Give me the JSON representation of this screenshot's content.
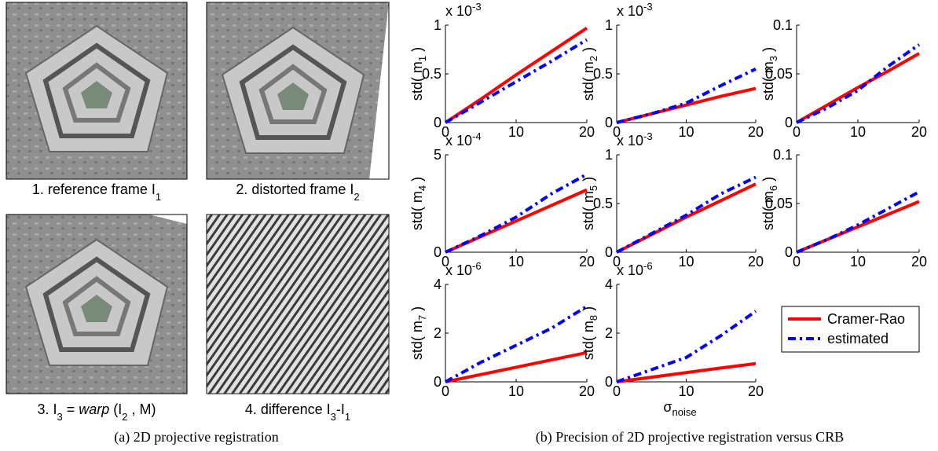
{
  "figure": {
    "panels": [
      {
        "caption": [
          "1. reference frame I",
          "1"
        ]
      },
      {
        "caption": [
          "2. distorted frame I",
          "2"
        ]
      },
      {
        "caption": [
          "3. I",
          "3",
          " = ",
          "warp",
          " (I",
          "2",
          " , M)"
        ]
      },
      {
        "caption": [
          "4. difference I",
          "3",
          "-I",
          "1"
        ]
      }
    ],
    "subcaptions": [
      "(a) 2D projective registration",
      "(b) Precision of 2D projective registration versus CRB"
    ]
  },
  "chart_data": [
    {
      "type": "line",
      "x": [
        0,
        5,
        10,
        15,
        20
      ],
      "xlim": [
        0,
        20
      ],
      "xticks": [
        0,
        10,
        20
      ],
      "ylim": [
        0,
        1
      ],
      "yticks": [
        0,
        0.5,
        1
      ],
      "multiplier": "x 10",
      "exponent": "-3",
      "ylabel": [
        "std( m",
        "1",
        " )"
      ],
      "series": [
        {
          "name": "Cramer-Rao",
          "color": "#ff0000",
          "values": [
            0,
            0.24,
            0.49,
            0.73,
            0.97
          ]
        },
        {
          "name": "estimated",
          "color": "#0000ff",
          "values": [
            0,
            0.21,
            0.42,
            0.63,
            0.85
          ]
        }
      ]
    },
    {
      "type": "line",
      "x": [
        0,
        5,
        10,
        15,
        20
      ],
      "xlim": [
        0,
        20
      ],
      "xticks": [
        0,
        10,
        20
      ],
      "ylim": [
        0,
        1
      ],
      "yticks": [
        0,
        0.5,
        1
      ],
      "multiplier": "x 10",
      "exponent": "-3",
      "ylabel": [
        "std( m",
        "2",
        " )"
      ],
      "series": [
        {
          "name": "Cramer-Rao",
          "color": "#ff0000",
          "values": [
            0,
            0.09,
            0.18,
            0.27,
            0.35
          ]
        },
        {
          "name": "estimated",
          "color": "#0000ff",
          "values": [
            0,
            0.09,
            0.2,
            0.38,
            0.55
          ]
        }
      ]
    },
    {
      "type": "line",
      "x": [
        0,
        5,
        10,
        15,
        20
      ],
      "xlim": [
        0,
        20
      ],
      "xticks": [
        0,
        10,
        20
      ],
      "ylim": [
        0,
        0.1
      ],
      "yticks": [
        0,
        0.05,
        0.1
      ],
      "ylabel": [
        "std( m",
        "3",
        " )"
      ],
      "series": [
        {
          "name": "Cramer-Rao",
          "color": "#ff0000",
          "values": [
            0,
            0.018,
            0.036,
            0.053,
            0.071
          ]
        },
        {
          "name": "estimated",
          "color": "#0000ff",
          "values": [
            0,
            0.015,
            0.033,
            0.058,
            0.08
          ]
        }
      ]
    },
    {
      "type": "line",
      "x": [
        0,
        5,
        10,
        15,
        20
      ],
      "xlim": [
        0,
        20
      ],
      "xticks": [
        0,
        10,
        20
      ],
      "ylim": [
        0,
        5
      ],
      "yticks": [
        0,
        5
      ],
      "multiplier": "x 10",
      "exponent": "-4",
      "ylabel": [
        "std( m",
        "4",
        " )"
      ],
      "series": [
        {
          "name": "Cramer-Rao",
          "color": "#ff0000",
          "values": [
            0,
            0.8,
            1.6,
            2.4,
            3.2
          ]
        },
        {
          "name": "estimated",
          "color": "#0000ff",
          "values": [
            0,
            0.85,
            1.8,
            3.0,
            4.0
          ]
        }
      ]
    },
    {
      "type": "line",
      "x": [
        0,
        5,
        10,
        15,
        20
      ],
      "xlim": [
        0,
        20
      ],
      "xticks": [
        0,
        10,
        20
      ],
      "ylim": [
        0,
        1
      ],
      "yticks": [
        0,
        0.5,
        1
      ],
      "multiplier": "x 10",
      "exponent": "-3",
      "ylabel": [
        "std( m",
        "5",
        " )"
      ],
      "series": [
        {
          "name": "Cramer-Rao",
          "color": "#ff0000",
          "values": [
            0,
            0.18,
            0.36,
            0.53,
            0.7
          ]
        },
        {
          "name": "estimated",
          "color": "#0000ff",
          "values": [
            0,
            0.19,
            0.38,
            0.6,
            0.77
          ]
        }
      ]
    },
    {
      "type": "line",
      "x": [
        0,
        5,
        10,
        15,
        20
      ],
      "xlim": [
        0,
        20
      ],
      "xticks": [
        0,
        10,
        20
      ],
      "ylim": [
        0,
        0.1
      ],
      "yticks": [
        0,
        0.05,
        0.1
      ],
      "ylabel": [
        "std( m",
        "6",
        " )"
      ],
      "series": [
        {
          "name": "Cramer-Rao",
          "color": "#ff0000",
          "values": [
            0,
            0.013,
            0.026,
            0.039,
            0.052
          ]
        },
        {
          "name": "estimated",
          "color": "#0000ff",
          "values": [
            0,
            0.013,
            0.028,
            0.045,
            0.062
          ]
        }
      ]
    },
    {
      "type": "line",
      "x": [
        0,
        5,
        10,
        15,
        20
      ],
      "xlim": [
        0,
        20
      ],
      "xticks": [
        0,
        10,
        20
      ],
      "ylim": [
        0,
        4
      ],
      "yticks": [
        0,
        2,
        4
      ],
      "multiplier": "x 10",
      "exponent": "-6",
      "ylabel": [
        "std( m",
        "7",
        " )"
      ],
      "series": [
        {
          "name": "Cramer-Rao",
          "color": "#ff0000",
          "values": [
            0,
            0.3,
            0.6,
            0.9,
            1.2
          ]
        },
        {
          "name": "estimated",
          "color": "#0000ff",
          "values": [
            0,
            0.8,
            1.5,
            2.2,
            3.1
          ]
        }
      ]
    },
    {
      "type": "line",
      "x": [
        0,
        5,
        10,
        15,
        20
      ],
      "xlim": [
        0,
        20
      ],
      "xticks": [
        0,
        10,
        20
      ],
      "ylim": [
        0,
        4
      ],
      "yticks": [
        0,
        2,
        4
      ],
      "multiplier": "x 10",
      "exponent": "-6",
      "ylabel": [
        "std( m",
        "8",
        " )"
      ],
      "xlabel": [
        "σ",
        "noise"
      ],
      "legend": true,
      "series": [
        {
          "name": "Cramer-Rao",
          "color": "#ff0000",
          "values": [
            0,
            0.19,
            0.38,
            0.57,
            0.75
          ]
        },
        {
          "name": "estimated",
          "color": "#0000ff",
          "values": [
            0,
            0.5,
            1.0,
            1.9,
            2.9
          ]
        }
      ]
    }
  ]
}
